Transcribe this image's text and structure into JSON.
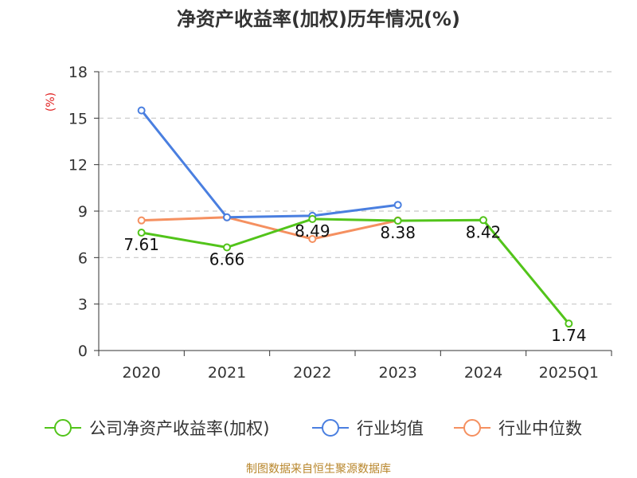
{
  "chart_data": {
    "type": "line",
    "title": "净资产收益率(加权)历年情况(%)",
    "ylabel": "(%)",
    "categories": [
      "2020",
      "2021",
      "2022",
      "2023",
      "2024",
      "2025Q1"
    ],
    "yticks": [
      0,
      3,
      6,
      9,
      12,
      15,
      18
    ],
    "ylim": [
      0,
      18
    ],
    "grid": true,
    "legend_position": "bottom",
    "series": [
      {
        "name": "公司净资产收益率(加权)",
        "color": "#52c41a",
        "values": [
          7.61,
          6.66,
          8.49,
          8.38,
          8.42,
          1.74
        ],
        "labels": [
          "7.61",
          "6.66",
          "8.49",
          "8.38",
          "8.42",
          "1.74"
        ]
      },
      {
        "name": "行业均值",
        "color": "#4a7fe0",
        "values": [
          15.5,
          8.6,
          8.7,
          9.4,
          null,
          null
        ]
      },
      {
        "name": "行业中位数",
        "color": "#f59060",
        "values": [
          8.4,
          8.6,
          7.2,
          8.4,
          null,
          null
        ]
      }
    ]
  },
  "footer": {
    "source": "制图数据来自恒生聚源数据库"
  }
}
